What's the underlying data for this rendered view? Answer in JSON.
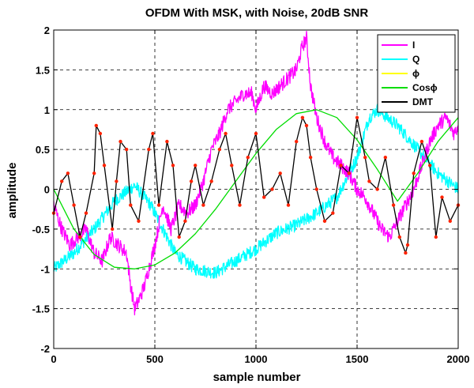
{
  "chart_data": {
    "type": "line",
    "title": "OFDM With MSK, with Noise, 20dB SNR",
    "xlabel": "sample number",
    "ylabel": "amplitude",
    "xlim": [
      0,
      2000
    ],
    "ylim": [
      -2,
      2
    ],
    "xticks": [
      "0",
      "500",
      "1000",
      "1500",
      "2000"
    ],
    "yticks": [
      "-2",
      "-1.5",
      "-1",
      "-0.5",
      "0",
      "0.5",
      "1",
      "1.5",
      "2"
    ],
    "grid": true,
    "legend_position": "top-right",
    "series": [
      {
        "name": "I",
        "color": "#ff00ff",
        "noise": 0.09,
        "x": [
          0,
          40,
          80,
          120,
          160,
          200,
          240,
          280,
          320,
          360,
          370,
          380,
          400,
          420,
          450,
          480,
          500,
          540,
          580,
          620,
          660,
          700,
          740,
          780,
          820,
          860,
          900,
          940,
          980,
          1000,
          1040,
          1080,
          1120,
          1160,
          1200,
          1230,
          1250,
          1270,
          1300,
          1340,
          1380,
          1420,
          1460,
          1500,
          1540,
          1580,
          1620,
          1660,
          1700,
          1740,
          1780,
          1820,
          1860,
          1900,
          1940,
          1980,
          2000
        ],
        "y": [
          -0.2,
          -0.5,
          -0.7,
          -0.6,
          -0.5,
          -0.8,
          -0.9,
          -0.6,
          -0.7,
          -0.8,
          -1.0,
          -1.2,
          -1.5,
          -1.4,
          -1.2,
          -0.9,
          -0.7,
          -0.2,
          -0.5,
          -0.2,
          -0.3,
          -0.2,
          0.1,
          0.5,
          0.7,
          1.0,
          1.1,
          1.2,
          1.2,
          1.0,
          1.3,
          1.2,
          1.3,
          1.4,
          1.5,
          1.8,
          1.9,
          1.3,
          0.9,
          0.6,
          0.4,
          0.3,
          0.2,
          0.0,
          -0.1,
          -0.3,
          -0.5,
          -0.6,
          -0.4,
          -0.2,
          0.0,
          0.3,
          0.6,
          0.8,
          0.9,
          0.7,
          0.8
        ]
      },
      {
        "name": "Q",
        "color": "#00ffff",
        "noise": 0.08,
        "x": [
          0,
          100,
          200,
          300,
          400,
          480,
          540,
          600,
          700,
          800,
          900,
          1000,
          1100,
          1200,
          1300,
          1400,
          1500,
          1560,
          1600,
          1700,
          1800,
          1900,
          2000
        ],
        "y": [
          -1.0,
          -0.8,
          -0.5,
          -0.15,
          0.05,
          -0.2,
          -0.5,
          -0.8,
          -1.0,
          -1.05,
          -0.9,
          -0.75,
          -0.55,
          -0.45,
          -0.3,
          -0.1,
          0.4,
          0.9,
          1.0,
          0.8,
          0.5,
          0.2,
          0.0
        ]
      },
      {
        "name": "ϕ",
        "color": "#ffff00",
        "noise": 0.0,
        "x": [],
        "y": []
      },
      {
        "name": "Cosϕ",
        "color": "#00dd00",
        "noise": 0.0,
        "x": [
          0,
          100,
          200,
          300,
          400,
          500,
          600,
          700,
          800,
          900,
          1000,
          1100,
          1200,
          1300,
          1400,
          1500,
          1600,
          1700,
          1800,
          1900,
          2000
        ],
        "y": [
          0.0,
          -0.5,
          -0.82,
          -0.98,
          -1.0,
          -0.95,
          -0.8,
          -0.56,
          -0.25,
          0.1,
          0.45,
          0.75,
          0.95,
          1.0,
          0.9,
          0.62,
          0.25,
          -0.15,
          0.2,
          0.6,
          0.9
        ]
      },
      {
        "name": "DMT",
        "color": "#000000",
        "noise": 0.0,
        "x": [
          0,
          40,
          70,
          100,
          130,
          160,
          200,
          210,
          230,
          250,
          290,
          310,
          330,
          360,
          380,
          420,
          470,
          490,
          520,
          560,
          590,
          620,
          650,
          680,
          700,
          740,
          780,
          820,
          850,
          880,
          920,
          960,
          1000,
          1040,
          1080,
          1120,
          1160,
          1200,
          1230,
          1250,
          1270,
          1300,
          1340,
          1380,
          1420,
          1460,
          1500,
          1540,
          1560,
          1600,
          1640,
          1680,
          1710,
          1740,
          1750,
          1780,
          1820,
          1860,
          1890,
          1920,
          1960,
          2000
        ],
        "y": [
          -0.3,
          0.1,
          0.2,
          -0.2,
          -0.6,
          -0.3,
          0.2,
          0.8,
          0.7,
          0.3,
          -0.5,
          0.1,
          0.6,
          0.5,
          -0.2,
          -0.4,
          0.5,
          0.7,
          -0.2,
          0.6,
          0.3,
          -0.6,
          -0.4,
          0.1,
          0.3,
          -0.2,
          0.1,
          0.5,
          0.7,
          0.3,
          -0.2,
          0.4,
          0.7,
          -0.1,
          0.0,
          0.2,
          -0.2,
          0.6,
          0.9,
          0.8,
          0.4,
          0.0,
          -0.4,
          -0.3,
          0.3,
          0.2,
          0.9,
          0.4,
          0.1,
          0.0,
          0.4,
          -0.2,
          -0.6,
          -0.8,
          -0.7,
          0.2,
          0.6,
          0.3,
          -0.6,
          -0.1,
          -0.4,
          -0.2
        ]
      }
    ]
  }
}
